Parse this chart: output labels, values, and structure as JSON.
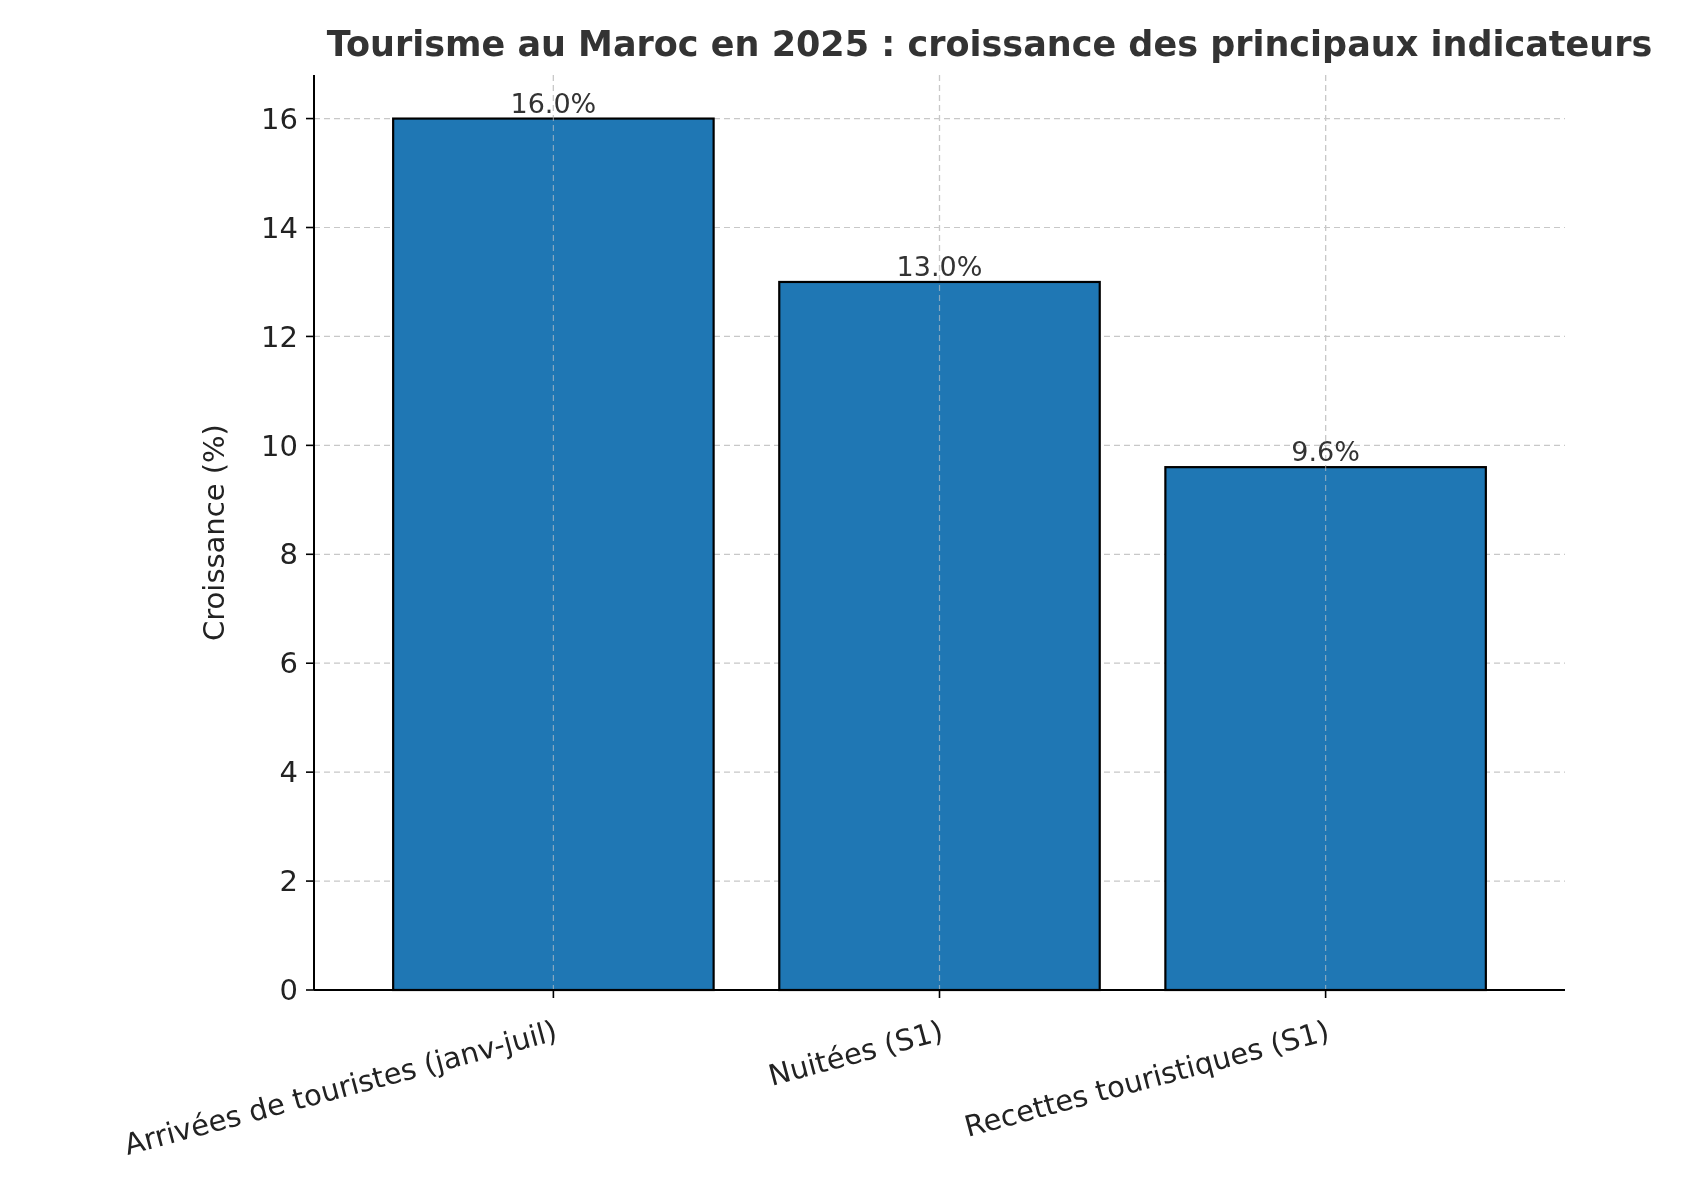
{
  "chart_data": {
    "type": "bar",
    "title": "Tourisme au Maroc en 2025 : croissance des principaux indicateurs",
    "ylabel": "Croissance (%)",
    "categories": [
      "Arrivées de touristes (janv-juil)",
      "Nuitées (S1)",
      "Recettes touristiques (S1)"
    ],
    "values": [
      16.0,
      13.0,
      9.6
    ],
    "color": "#1f77b4",
    "value_labels": [
      "16.0%",
      "13.0%",
      "9.6%"
    ],
    "ylim": [
      0,
      16.8
    ],
    "yticks": [
      0,
      2,
      4,
      6,
      8,
      10,
      12,
      14,
      16
    ],
    "grid": true
  }
}
